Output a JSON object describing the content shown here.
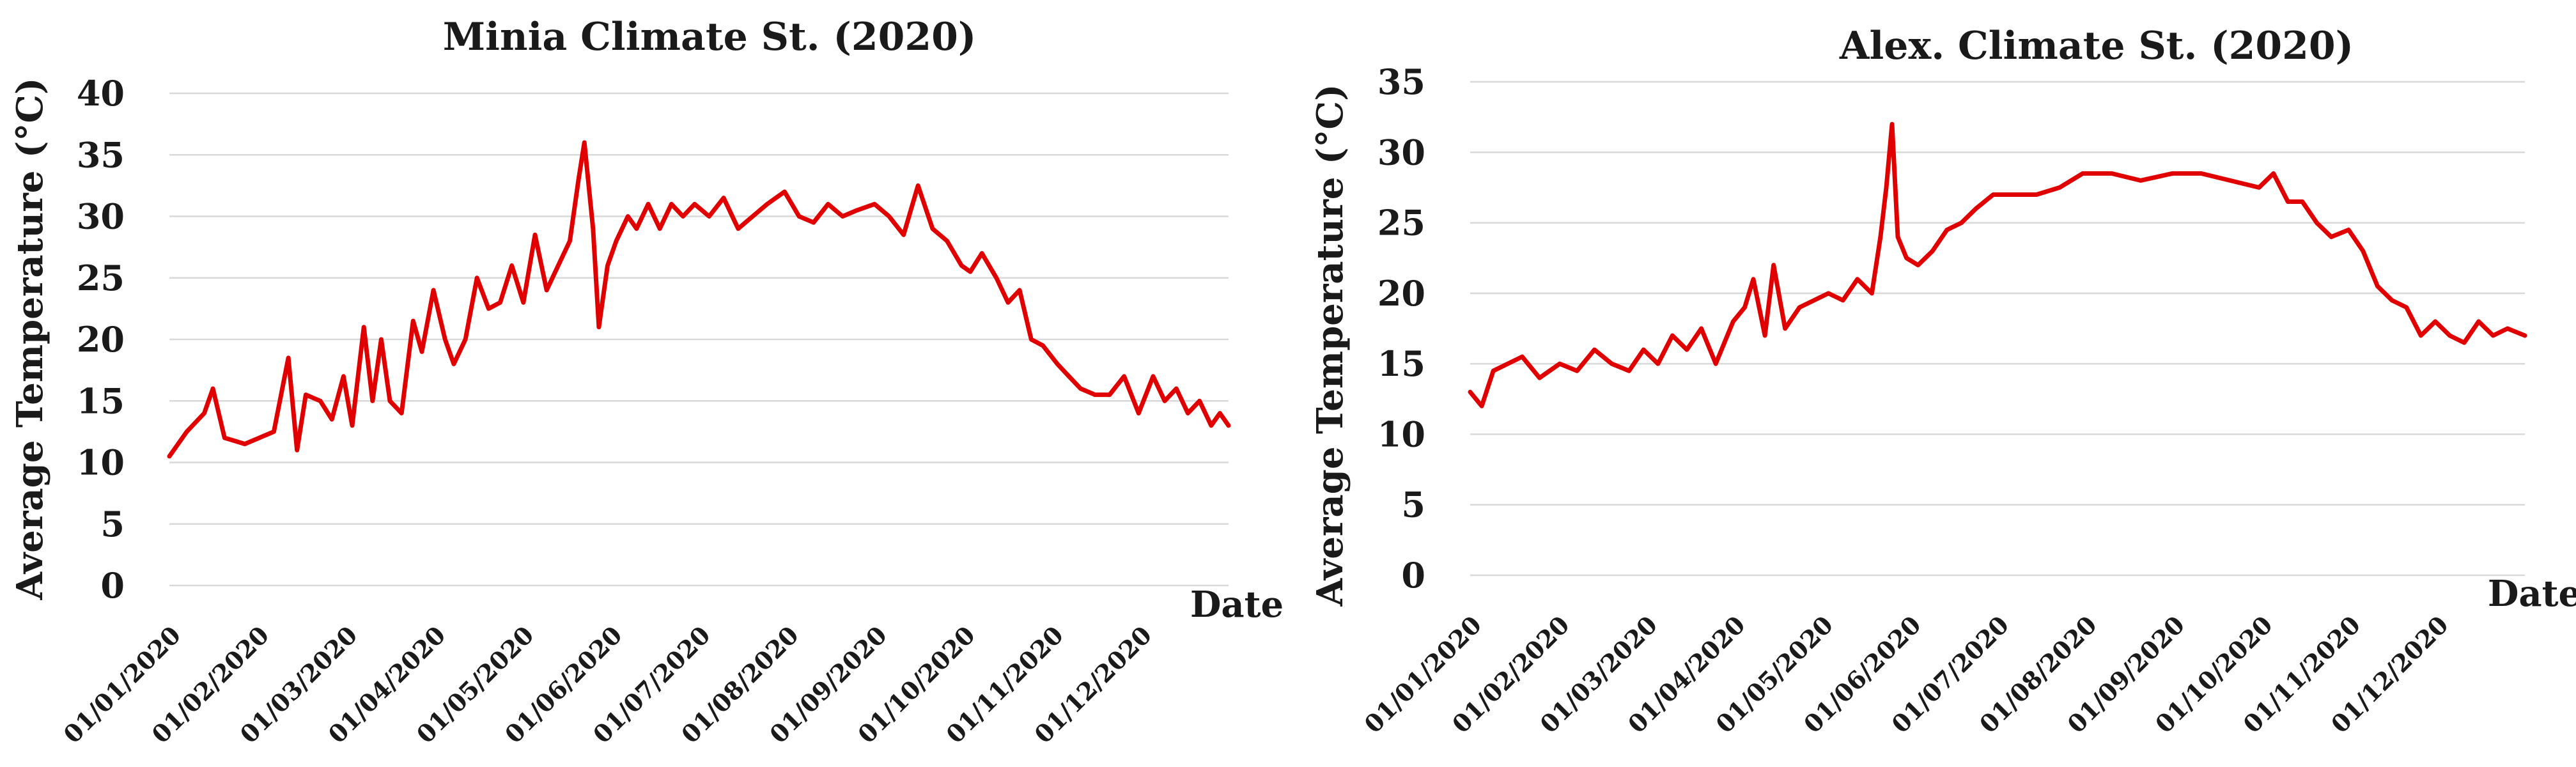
{
  "chart_data": [
    {
      "type": "line",
      "title": "Minia Climate St. (2020)",
      "xlabel": "Date",
      "ylabel": "Average Temperature (°C)",
      "ylim": [
        0,
        40
      ],
      "ytick_step": 5,
      "grid": true,
      "legend": "none",
      "categories": [
        "01/01/2020",
        "01/02/2020",
        "01/03/2020",
        "01/04/2020",
        "01/05/2020",
        "01/06/2020",
        "01/07/2020",
        "01/08/2020",
        "01/09/2020",
        "01/10/2020",
        "01/11/2020",
        "01/12/2020"
      ],
      "series": [
        {
          "color": "#e00000",
          "x": [
            "2020-01-01",
            "2020-01-07",
            "2020-01-13",
            "2020-01-16",
            "2020-01-20",
            "2020-01-27",
            "2020-02-01",
            "2020-02-06",
            "2020-02-11",
            "2020-02-14",
            "2020-02-17",
            "2020-02-22",
            "2020-02-26",
            "2020-03-01",
            "2020-03-04",
            "2020-03-08",
            "2020-03-11",
            "2020-03-14",
            "2020-03-17",
            "2020-03-21",
            "2020-03-25",
            "2020-03-28",
            "2020-04-01",
            "2020-04-05",
            "2020-04-08",
            "2020-04-12",
            "2020-04-16",
            "2020-04-20",
            "2020-04-24",
            "2020-04-28",
            "2020-05-02",
            "2020-05-06",
            "2020-05-10",
            "2020-05-14",
            "2020-05-18",
            "2020-05-21",
            "2020-05-23",
            "2020-05-26",
            "2020-05-28",
            "2020-05-31",
            "2020-06-03",
            "2020-06-07",
            "2020-06-10",
            "2020-06-14",
            "2020-06-18",
            "2020-06-22",
            "2020-06-26",
            "2020-06-30",
            "2020-07-05",
            "2020-07-10",
            "2020-07-15",
            "2020-07-20",
            "2020-07-25",
            "2020-07-31",
            "2020-08-05",
            "2020-08-10",
            "2020-08-15",
            "2020-08-20",
            "2020-08-25",
            "2020-08-31",
            "2020-09-05",
            "2020-09-10",
            "2020-09-15",
            "2020-09-20",
            "2020-09-25",
            "2020-09-30",
            "2020-10-03",
            "2020-10-07",
            "2020-10-12",
            "2020-10-16",
            "2020-10-20",
            "2020-10-24",
            "2020-10-28",
            "2020-11-02",
            "2020-11-06",
            "2020-11-10",
            "2020-11-15",
            "2020-11-20",
            "2020-11-25",
            "2020-11-30",
            "2020-12-05",
            "2020-12-09",
            "2020-12-13",
            "2020-12-17",
            "2020-12-21",
            "2020-12-25",
            "2020-12-28",
            "2020-12-31"
          ],
          "values": [
            10.5,
            12.5,
            14,
            16,
            12,
            11.5,
            12,
            12.5,
            18.5,
            11,
            15.5,
            15,
            13.5,
            17,
            13,
            21,
            15,
            20,
            15,
            14,
            21.5,
            19,
            24,
            20,
            18,
            20,
            25,
            22.5,
            23,
            26,
            23,
            28.5,
            24,
            26,
            28,
            33,
            36,
            29,
            21,
            26,
            28,
            30,
            29,
            31,
            29,
            31,
            30,
            31,
            30,
            31.5,
            29,
            30,
            31,
            32,
            30,
            29.5,
            31,
            30,
            30.5,
            31,
            30,
            28.5,
            32.5,
            29,
            28,
            26,
            25.5,
            27,
            25,
            23,
            24,
            20,
            19.5,
            18,
            17,
            16,
            15.5,
            15.5,
            17,
            14,
            17,
            15,
            16,
            14,
            15,
            13,
            14,
            13
          ]
        }
      ]
    },
    {
      "type": "line",
      "title": "Alex. Climate St. (2020)",
      "xlabel": "Date",
      "ylabel": "Average Temperature (°C)",
      "ylim": [
        0,
        35
      ],
      "ytick_step": 5,
      "grid": true,
      "legend": "none",
      "categories": [
        "01/01/2020",
        "01/02/2020",
        "01/03/2020",
        "01/04/2020",
        "01/05/2020",
        "01/06/2020",
        "01/07/2020",
        "01/08/2020",
        "01/09/2020",
        "01/10/2020",
        "01/11/2020",
        "01/12/2020"
      ],
      "series": [
        {
          "color": "#e00000",
          "x": [
            "2020-01-01",
            "2020-01-05",
            "2020-01-09",
            "2020-01-14",
            "2020-01-19",
            "2020-01-25",
            "2020-02-01",
            "2020-02-07",
            "2020-02-13",
            "2020-02-19",
            "2020-02-25",
            "2020-03-01",
            "2020-03-06",
            "2020-03-11",
            "2020-03-16",
            "2020-03-21",
            "2020-03-26",
            "2020-04-01",
            "2020-04-05",
            "2020-04-08",
            "2020-04-12",
            "2020-04-15",
            "2020-04-19",
            "2020-04-24",
            "2020-04-29",
            "2020-05-04",
            "2020-05-09",
            "2020-05-14",
            "2020-05-19",
            "2020-05-22",
            "2020-05-24",
            "2020-05-26",
            "2020-05-28",
            "2020-05-31",
            "2020-06-04",
            "2020-06-09",
            "2020-06-14",
            "2020-06-19",
            "2020-06-24",
            "2020-06-30",
            "2020-07-08",
            "2020-07-15",
            "2020-07-23",
            "2020-07-31",
            "2020-08-10",
            "2020-08-20",
            "2020-08-31",
            "2020-09-10",
            "2020-09-20",
            "2020-09-30",
            "2020-10-05",
            "2020-10-10",
            "2020-10-15",
            "2020-10-20",
            "2020-10-25",
            "2020-10-31",
            "2020-11-05",
            "2020-11-10",
            "2020-11-15",
            "2020-11-20",
            "2020-11-25",
            "2020-11-30",
            "2020-12-05",
            "2020-12-10",
            "2020-12-15",
            "2020-12-20",
            "2020-12-25",
            "2020-12-31"
          ],
          "values": [
            13,
            12,
            14.5,
            15,
            15.5,
            14,
            15,
            14.5,
            16,
            15,
            14.5,
            16,
            15,
            17,
            16,
            17.5,
            15,
            18,
            19,
            21,
            17,
            22,
            17.5,
            19,
            19.5,
            20,
            19.5,
            21,
            20,
            24,
            27.5,
            32,
            24,
            22.5,
            22,
            23,
            24.5,
            25,
            26,
            27,
            27,
            27,
            27.5,
            28.5,
            28.5,
            28,
            28.5,
            28.5,
            28,
            27.5,
            28.5,
            26.5,
            26.5,
            25,
            24,
            24.5,
            23,
            20.5,
            19.5,
            19,
            17,
            18,
            17,
            16.5,
            18,
            17,
            17.5,
            17
          ]
        }
      ]
    }
  ]
}
